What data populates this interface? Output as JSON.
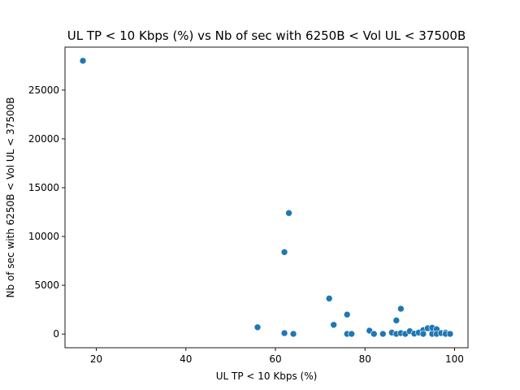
{
  "chart_data": {
    "type": "scatter",
    "title": "UL TP < 10 Kbps (%) vs Nb of sec with 6250B < Vol UL < 37500B",
    "xlabel": "UL TP < 10 Kbps (%)",
    "ylabel": "Nb of sec with 6250B < Vol UL < 37500B",
    "xlim": [
      13,
      103
    ],
    "ylim": [
      -1400,
      29400
    ],
    "xticks": [
      20,
      40,
      60,
      80,
      100
    ],
    "yticks": [
      0,
      5000,
      10000,
      15000,
      20000,
      25000
    ],
    "grid": false,
    "color": "#1f77b4",
    "points": [
      {
        "x": 17,
        "y": 28000
      },
      {
        "x": 56,
        "y": 700
      },
      {
        "x": 62,
        "y": 8400
      },
      {
        "x": 62,
        "y": 100
      },
      {
        "x": 63,
        "y": 12400
      },
      {
        "x": 64,
        "y": 20
      },
      {
        "x": 72,
        "y": 3650
      },
      {
        "x": 73,
        "y": 950
      },
      {
        "x": 76,
        "y": 2000
      },
      {
        "x": 76,
        "y": 20
      },
      {
        "x": 77,
        "y": 20
      },
      {
        "x": 81,
        "y": 350
      },
      {
        "x": 82,
        "y": 20
      },
      {
        "x": 84,
        "y": 20
      },
      {
        "x": 86,
        "y": 150
      },
      {
        "x": 87,
        "y": 1400
      },
      {
        "x": 87,
        "y": 20
      },
      {
        "x": 88,
        "y": 2600
      },
      {
        "x": 88,
        "y": 100
      },
      {
        "x": 89,
        "y": 20
      },
      {
        "x": 90,
        "y": 300
      },
      {
        "x": 91,
        "y": 50
      },
      {
        "x": 92,
        "y": 150
      },
      {
        "x": 93,
        "y": 400
      },
      {
        "x": 93,
        "y": 20
      },
      {
        "x": 94,
        "y": 600
      },
      {
        "x": 95,
        "y": 150
      },
      {
        "x": 95,
        "y": 20
      },
      {
        "x": 95,
        "y": 650
      },
      {
        "x": 96,
        "y": 500
      },
      {
        "x": 96,
        "y": 20
      },
      {
        "x": 97,
        "y": 100
      },
      {
        "x": 98,
        "y": 150
      },
      {
        "x": 98,
        "y": 20
      },
      {
        "x": 99,
        "y": 20
      }
    ]
  }
}
